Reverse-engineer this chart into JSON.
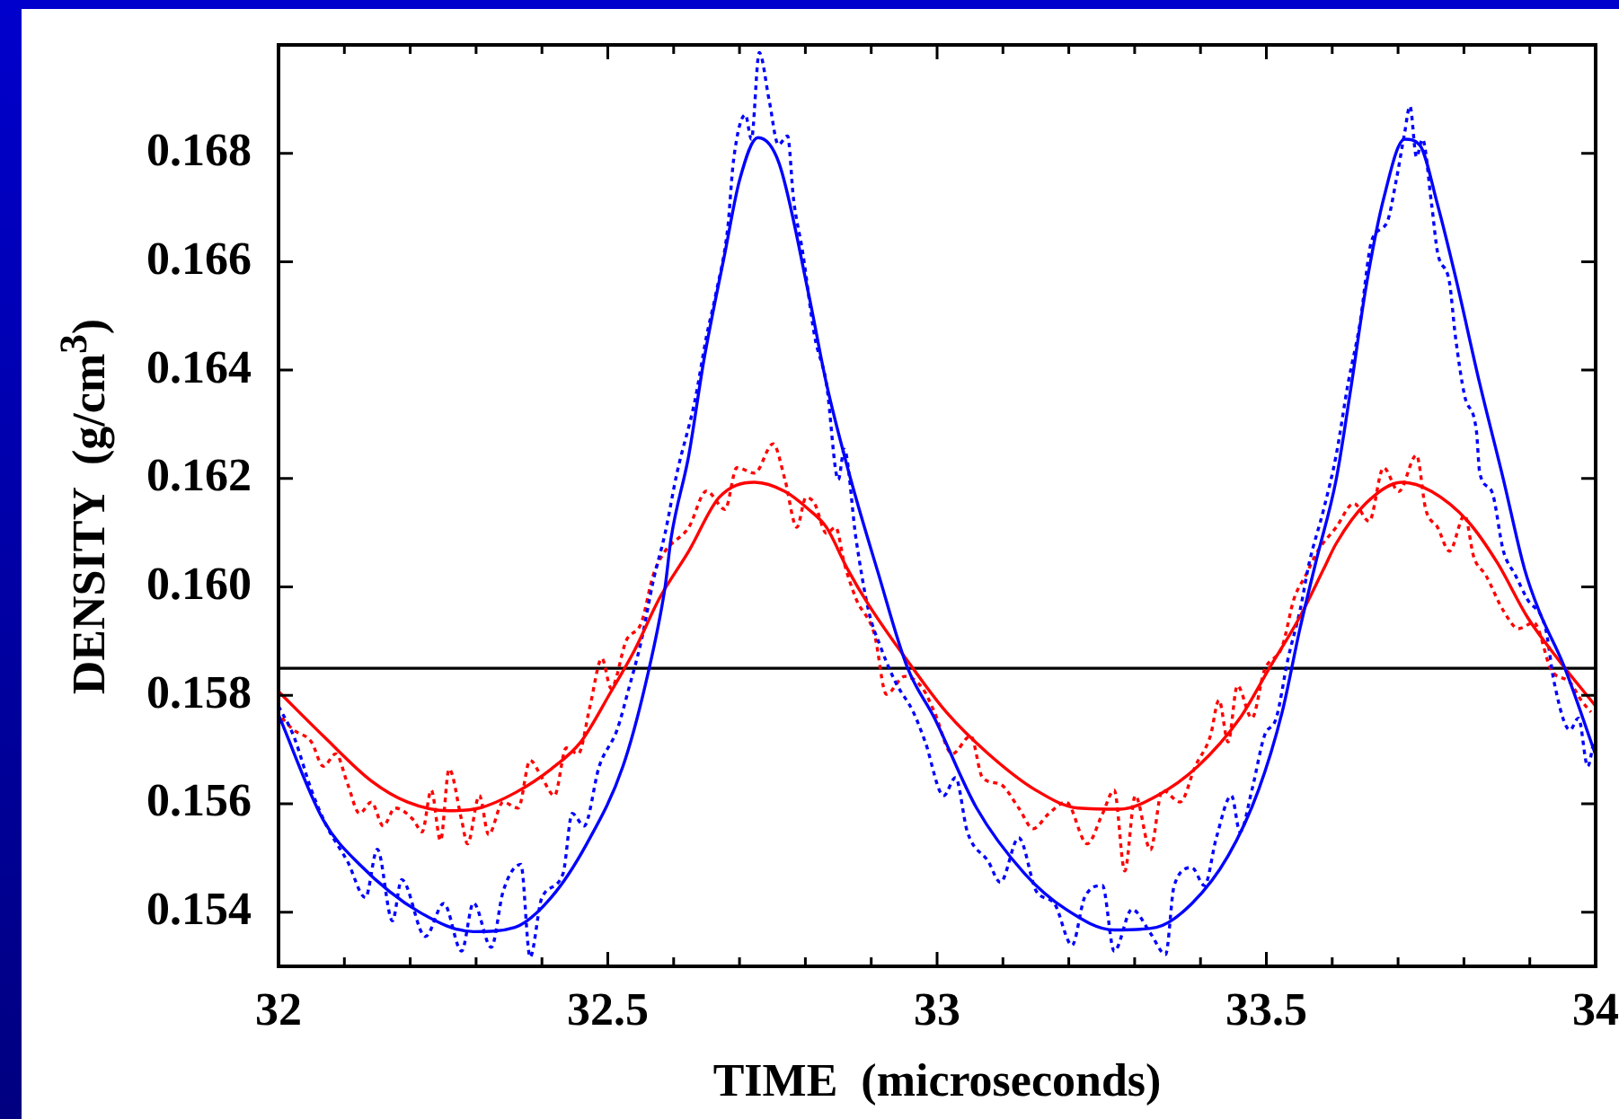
{
  "chart_data": {
    "type": "line",
    "xlabel": "TIME  (microseconds)",
    "ylabel": "DENSITY  (g/cm$^{3}$)",
    "xlim": [
      32,
      34
    ],
    "ylim": [
      0.153,
      0.17
    ],
    "xticks": [
      32,
      {
        "value": 32.1,
        "label": null
      },
      {
        "value": 32.2,
        "label": null
      },
      {
        "value": 32.3,
        "label": null
      },
      {
        "value": 32.4,
        "label": null
      },
      32.5,
      {
        "value": 32.6,
        "label": null
      },
      {
        "value": 32.7,
        "label": null
      },
      {
        "value": 32.8,
        "label": null
      },
      {
        "value": 32.9,
        "label": null
      },
      33,
      {
        "value": 33.1,
        "label": null
      },
      {
        "value": 33.2,
        "label": null
      },
      {
        "value": 33.3,
        "label": null
      },
      {
        "value": 33.4,
        "label": null
      },
      33.5,
      {
        "value": 33.6,
        "label": null
      },
      {
        "value": 33.7,
        "label": null
      },
      {
        "value": 33.8,
        "label": null
      },
      {
        "value": 33.9,
        "label": null
      },
      34
    ],
    "yticks": [
      0.154,
      0.156,
      0.158,
      {
        "value": 0.16,
        "label": "0.160"
      },
      0.162,
      0.164,
      0.166,
      0.168
    ],
    "grid": false,
    "legend": false,
    "ref_lines": [
      {
        "axis": "y",
        "value": 0.1585,
        "color": "#000000"
      }
    ],
    "series": [
      {
        "color": "#0000ff",
        "line_style": "solid",
        "x": [
          32,
          32.068,
          32.123,
          32.214,
          32.296,
          32.359,
          32.414,
          32.468,
          32.523,
          32.56,
          32.587,
          32.596,
          32.623,
          32.646,
          32.678,
          32.7,
          32.728,
          32.76,
          32.805,
          32.832,
          32.869,
          32.91,
          32.955,
          32.996,
          33.06,
          33.133,
          33.196,
          33.269,
          33.333,
          33.387,
          33.442,
          33.488,
          33.524,
          33.551,
          33.576,
          33.606,
          33.628,
          33.651,
          33.678,
          33.71,
          33.733,
          33.76,
          33.787,
          33.824,
          33.86,
          33.892,
          33.914,
          33.951,
          34
        ],
        "values": [
          0.15764,
          0.1557,
          0.15488,
          0.154,
          0.15364,
          0.15372,
          0.15427,
          0.15526,
          0.15669,
          0.15835,
          0.16,
          0.16089,
          0.16243,
          0.16419,
          0.16617,
          0.1675,
          0.16829,
          0.16782,
          0.1654,
          0.16375,
          0.16198,
          0.16028,
          0.15851,
          0.15758,
          0.15592,
          0.15471,
          0.15405,
          0.15367,
          0.15372,
          0.15416,
          0.15504,
          0.15625,
          0.15769,
          0.15923,
          0.1605,
          0.16198,
          0.16364,
          0.16551,
          0.16716,
          0.16826,
          0.16815,
          0.16705,
          0.16573,
          0.16375,
          0.16198,
          0.16033,
          0.15956,
          0.15857,
          0.1569
        ]
      },
      {
        "color": "#ff0000",
        "line_style": "solid",
        "x": [
          32,
          32.068,
          32.141,
          32.196,
          32.259,
          32.305,
          32.359,
          32.414,
          32.459,
          32.505,
          32.541,
          32.578,
          32.623,
          32.669,
          32.723,
          32.769,
          32.805,
          32.832,
          32.864,
          32.896,
          32.959,
          33.014,
          33.078,
          33.15,
          33.214,
          33.278,
          33.333,
          33.396,
          33.46,
          33.505,
          33.551,
          33.587,
          33.606,
          33.651,
          33.706,
          33.751,
          33.806,
          33.851,
          33.896,
          33.942,
          34
        ],
        "values": [
          0.15807,
          0.15725,
          0.15642,
          0.15603,
          0.15587,
          0.15592,
          0.1562,
          0.15664,
          0.15714,
          0.15807,
          0.15884,
          0.15978,
          0.16066,
          0.16165,
          0.16193,
          0.16176,
          0.16143,
          0.1611,
          0.16033,
          0.15967,
          0.15857,
          0.15769,
          0.15692,
          0.15625,
          0.15592,
          0.1559,
          0.15614,
          0.15669,
          0.15758,
          0.15851,
          0.15945,
          0.16033,
          0.1608,
          0.16154,
          0.16193,
          0.16176,
          0.16121,
          0.16044,
          0.15945,
          0.15868,
          0.1578
        ]
      },
      {
        "color": "#0000ff",
        "line_style": "dotted",
        "x": [
          32,
          32.023,
          32.05,
          32.073,
          32.105,
          32.132,
          32.15,
          32.173,
          32.187,
          32.223,
          32.251,
          32.278,
          32.296,
          32.323,
          32.341,
          32.368,
          32.382,
          32.4,
          32.432,
          32.446,
          32.464,
          32.487,
          32.514,
          32.532,
          32.551,
          32.569,
          32.587,
          32.605,
          32.632,
          32.65,
          32.664,
          32.682,
          32.691,
          32.709,
          32.718,
          32.73,
          32.745,
          32.759,
          32.773,
          32.782,
          32.796,
          32.814,
          32.832,
          32.85,
          32.859,
          32.877,
          32.896,
          32.914,
          32.937,
          32.964,
          32.982,
          33.01,
          33.028,
          33.046,
          33.078,
          33.096,
          33.124,
          33.151,
          33.178,
          33.205,
          33.224,
          33.251,
          33.269,
          33.296,
          33.324,
          33.347,
          33.36,
          33.387,
          33.406,
          33.424,
          33.447,
          33.46,
          33.478,
          33.497,
          33.515,
          33.533,
          33.551,
          33.565,
          33.587,
          33.606,
          33.624,
          33.642,
          33.66,
          33.683,
          33.697,
          33.71,
          33.718,
          33.728,
          33.737,
          33.751,
          33.76,
          33.778,
          33.787,
          33.801,
          33.819,
          33.824,
          33.842,
          33.86,
          33.878,
          33.896,
          33.924,
          33.937,
          33.961,
          33.974,
          33.988,
          33.997
        ],
        "values": [
          0.1578,
          0.15725,
          0.15625,
          0.15559,
          0.15493,
          0.15427,
          0.15516,
          0.15384,
          0.1546,
          0.15355,
          0.15416,
          0.15328,
          0.15417,
          0.15335,
          0.15438,
          0.15488,
          0.15317,
          0.15427,
          0.15471,
          0.15582,
          0.15559,
          0.15669,
          0.15736,
          0.15813,
          0.15901,
          0.16011,
          0.16099,
          0.1621,
          0.16342,
          0.16463,
          0.1654,
          0.16661,
          0.16788,
          0.16871,
          0.16826,
          0.16986,
          0.16898,
          0.16816,
          0.16832,
          0.16716,
          0.16617,
          0.16463,
          0.16375,
          0.16198,
          0.16254,
          0.16088,
          0.15956,
          0.1589,
          0.15824,
          0.15769,
          0.15714,
          0.15615,
          0.15648,
          0.15548,
          0.15493,
          0.15455,
          0.15537,
          0.15438,
          0.15416,
          0.15339,
          0.15427,
          0.15449,
          0.15328,
          0.15405,
          0.15361,
          0.15322,
          0.15449,
          0.15482,
          0.15449,
          0.15537,
          0.15615,
          0.15548,
          0.15625,
          0.15725,
          0.15758,
          0.15868,
          0.15956,
          0.16044,
          0.16143,
          0.16243,
          0.16375,
          0.16485,
          0.16639,
          0.16672,
          0.16749,
          0.16838,
          0.16887,
          0.16793,
          0.16826,
          0.16705,
          0.16617,
          0.16562,
          0.16463,
          0.16353,
          0.16287,
          0.1621,
          0.16177,
          0.16066,
          0.16022,
          0.15978,
          0.15923,
          0.15824,
          0.15736,
          0.15758,
          0.15669,
          0.15714
        ]
      },
      {
        "color": "#ff0000",
        "line_style": "dotted",
        "x": [
          32.005,
          32.023,
          32.05,
          32.068,
          32.087,
          32.105,
          32.123,
          32.141,
          32.159,
          32.177,
          32.205,
          32.218,
          32.232,
          32.246,
          32.259,
          32.278,
          32.287,
          32.305,
          32.319,
          32.341,
          32.364,
          32.382,
          32.4,
          32.419,
          32.437,
          32.455,
          32.473,
          32.491,
          32.505,
          32.528,
          32.551,
          32.569,
          32.587,
          32.623,
          32.65,
          32.678,
          32.696,
          32.723,
          32.751,
          32.769,
          32.787,
          32.801,
          32.814,
          32.832,
          32.846,
          32.859,
          32.877,
          32.905,
          32.923,
          32.951,
          32.978,
          32.996,
          33.023,
          33.051,
          33.069,
          33.096,
          33.124,
          33.146,
          33.169,
          33.196,
          33.228,
          33.251,
          33.269,
          33.285,
          33.301,
          33.324,
          33.342,
          33.369,
          33.392,
          33.415,
          33.428,
          33.442,
          33.456,
          33.478,
          33.497,
          33.524,
          33.542,
          33.56,
          33.578,
          33.606,
          33.633,
          33.656,
          33.678,
          33.701,
          33.728,
          33.742,
          33.76,
          33.778,
          33.801,
          33.815,
          33.833,
          33.86,
          33.883,
          33.906,
          33.933,
          33.961,
          33.978,
          33.993
        ],
        "values": [
          0.15758,
          0.15736,
          0.15714,
          0.15669,
          0.15692,
          0.15636,
          0.15582,
          0.15603,
          0.15559,
          0.15592,
          0.1557,
          0.15548,
          0.15625,
          0.15532,
          0.15664,
          0.1557,
          0.15526,
          0.15615,
          0.15543,
          0.15603,
          0.15592,
          0.1568,
          0.15648,
          0.15615,
          0.15703,
          0.15692,
          0.1578,
          0.15868,
          0.15813,
          0.15901,
          0.15934,
          0.16022,
          0.16066,
          0.1611,
          0.16177,
          0.16143,
          0.1622,
          0.1621,
          0.16264,
          0.16198,
          0.1611,
          0.16165,
          0.16154,
          0.16099,
          0.1611,
          0.16044,
          0.15978,
          0.15912,
          0.15802,
          0.15835,
          0.15813,
          0.15769,
          0.15692,
          0.15725,
          0.15648,
          0.15636,
          0.15592,
          0.15554,
          0.15581,
          0.15603,
          0.15526,
          0.15581,
          0.15625,
          0.15476,
          0.15615,
          0.15515,
          0.15625,
          0.15603,
          0.15669,
          0.15725,
          0.15791,
          0.15714,
          0.15818,
          0.15758,
          0.15846,
          0.1589,
          0.15978,
          0.16022,
          0.16066,
          0.1611,
          0.16154,
          0.16121,
          0.1622,
          0.16176,
          0.16243,
          0.16143,
          0.1611,
          0.16066,
          0.16132,
          0.16055,
          0.16022,
          0.15956,
          0.15923,
          0.15934,
          0.15846,
          0.15824,
          0.15791,
          0.15769
        ]
      }
    ]
  }
}
